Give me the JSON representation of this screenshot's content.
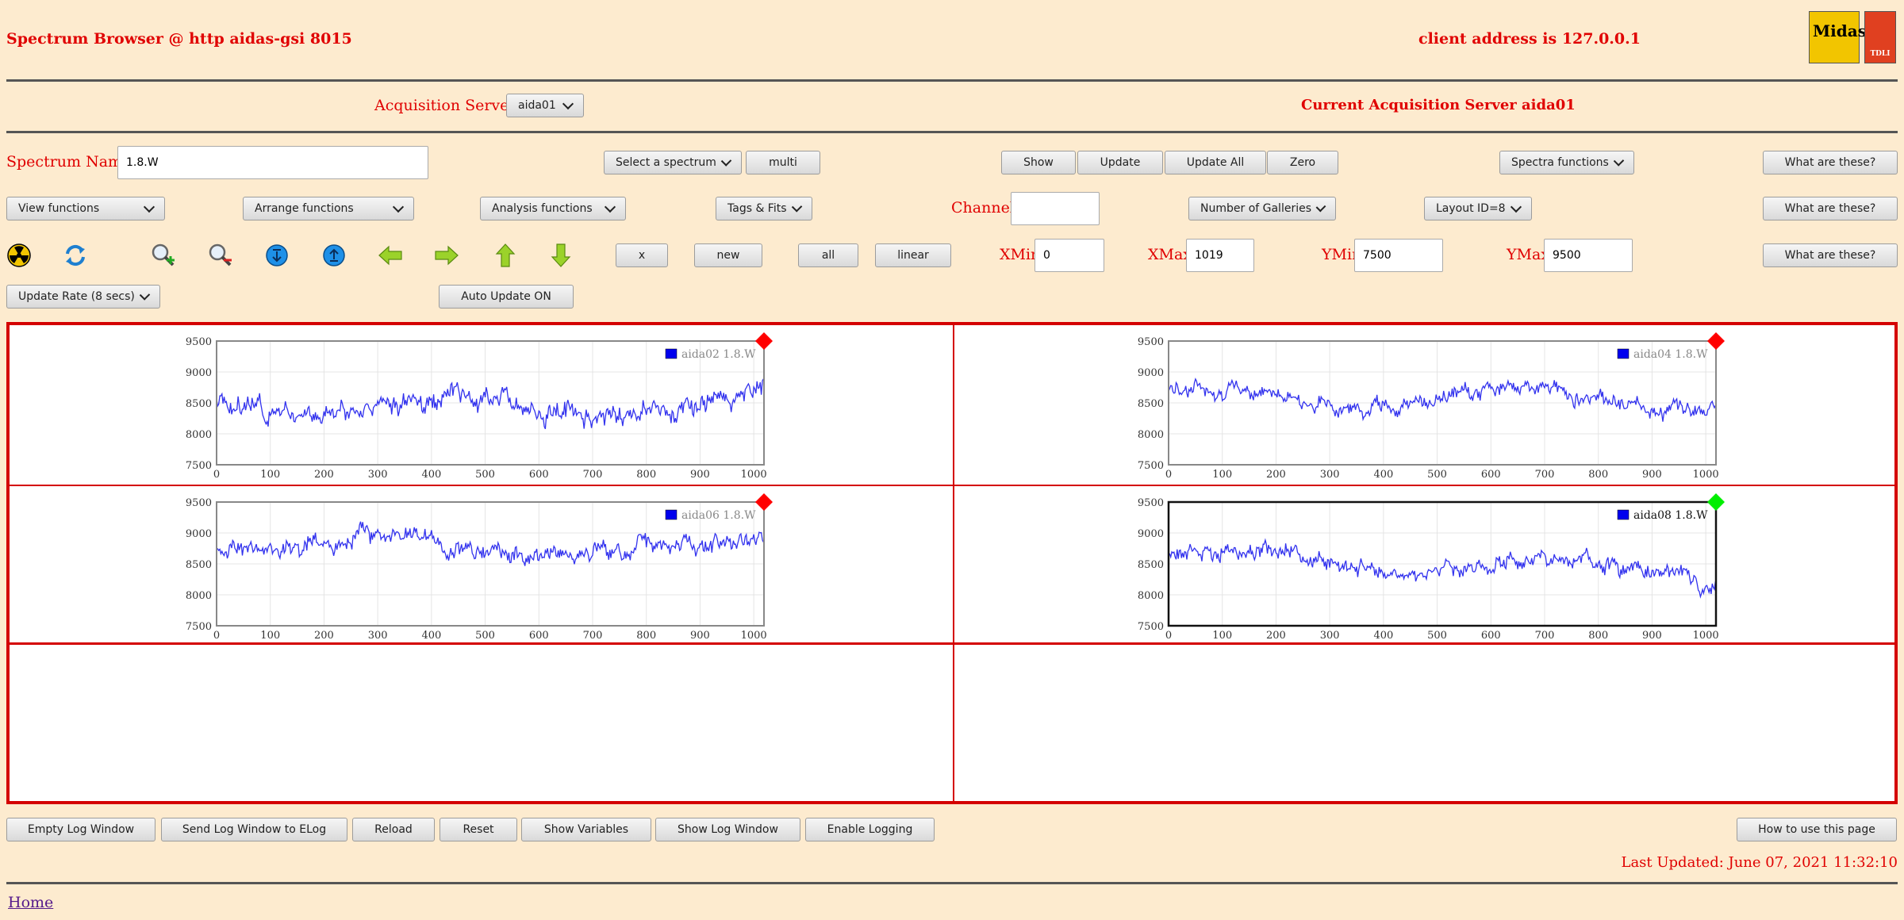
{
  "header": {
    "title": "Spectrum Browser @ http aidas-gsi 8015",
    "client": "client address is 127.0.0.1",
    "logo1": "Midas",
    "logo2": "TDLI"
  },
  "acq": {
    "label": "Acquisition Servers",
    "server": "aida01",
    "current": "Current Acquisition Server aida01"
  },
  "row1": {
    "spectrum_label": "Spectrum Name:",
    "spectrum_value": "1.8.W",
    "select": "Select a spectrum",
    "multi": "multi",
    "show": "Show",
    "update": "Update",
    "update_all": "Update All",
    "zero": "Zero",
    "spectra_functions": "Spectra functions",
    "what": "What are these?"
  },
  "row2": {
    "view": "View functions",
    "arrange": "Arrange functions",
    "analysis": "Analysis functions",
    "tags": "Tags & Fits",
    "channel_label": "Channel:",
    "channel_value": "",
    "galleries": "Number of Galleries",
    "layout": "Layout ID=8",
    "what": "What are these?"
  },
  "row3": {
    "icons": [
      "radiation-icon",
      "refresh-icon",
      "zoom-in-icon",
      "zoom-out-icon",
      "expand-down-icon",
      "expand-up-icon",
      "arrow-left-icon",
      "arrow-right-icon",
      "arrow-up-icon",
      "arrow-down-icon"
    ],
    "x": "x",
    "new": "new",
    "all": "all",
    "linear": "linear",
    "xmin_label": "XMin",
    "xmin": "0",
    "xmax_label": "XMax",
    "xmax": "1019",
    "ymin_label": "YMin",
    "ymin": "7500",
    "ymax_label": "YMax",
    "ymax": "9500",
    "what": "What are these?"
  },
  "row4": {
    "rate": "Update Rate (8 secs)",
    "auto": "Auto Update ON"
  },
  "chart_data": [
    {
      "type": "line",
      "series": [
        {
          "name": "aida02 1.8.W",
          "color": "#3333ee"
        }
      ],
      "status_color": "#ff0000",
      "xlim": [
        0,
        1019
      ],
      "ylim": [
        7500,
        9500
      ],
      "xticks": [
        0,
        100,
        200,
        300,
        400,
        500,
        600,
        700,
        800,
        900,
        1000
      ],
      "yticks": [
        7500,
        8000,
        8500,
        9000,
        9500
      ],
      "seed": 3,
      "base": 8500,
      "amp": 380,
      "active": false
    },
    {
      "type": "line",
      "series": [
        {
          "name": "aida04 1.8.W",
          "color": "#3333ee"
        }
      ],
      "status_color": "#ff0000",
      "xlim": [
        0,
        1019
      ],
      "ylim": [
        7500,
        9500
      ],
      "xticks": [
        0,
        100,
        200,
        300,
        400,
        500,
        600,
        700,
        800,
        900,
        1000
      ],
      "yticks": [
        7500,
        8000,
        8500,
        9000,
        9500
      ],
      "seed": 7,
      "base": 8650,
      "amp": 300,
      "active": false
    },
    {
      "type": "line",
      "series": [
        {
          "name": "aida06 1.8.W",
          "color": "#3333ee"
        }
      ],
      "status_color": "#ff0000",
      "xlim": [
        0,
        1019
      ],
      "ylim": [
        7500,
        9500
      ],
      "xticks": [
        0,
        100,
        200,
        300,
        400,
        500,
        600,
        700,
        800,
        900,
        1000
      ],
      "yticks": [
        7500,
        8000,
        8500,
        9000,
        9500
      ],
      "seed": 11,
      "base": 8850,
      "amp": 330,
      "active": false
    },
    {
      "type": "line",
      "series": [
        {
          "name": "aida08 1.8.W",
          "color": "#3333ee"
        }
      ],
      "status_color": "#00ee00",
      "xlim": [
        0,
        1019
      ],
      "ylim": [
        7500,
        9500
      ],
      "xticks": [
        0,
        100,
        200,
        300,
        400,
        500,
        600,
        700,
        800,
        900,
        1000
      ],
      "yticks": [
        7500,
        8000,
        8500,
        9000,
        9500
      ],
      "seed": 19,
      "base": 8600,
      "amp": 320,
      "active": true
    }
  ],
  "footer": {
    "empty_log": "Empty Log Window",
    "send_log": "Send Log Window to ELog",
    "reload": "Reload",
    "reset": "Reset",
    "show_vars": "Show Variables",
    "show_log": "Show Log Window",
    "enable_logging": "Enable Logging",
    "how_to": "How to use this page",
    "last_updated": "Last Updated: June 07, 2021 11:32:10",
    "home": "Home"
  }
}
